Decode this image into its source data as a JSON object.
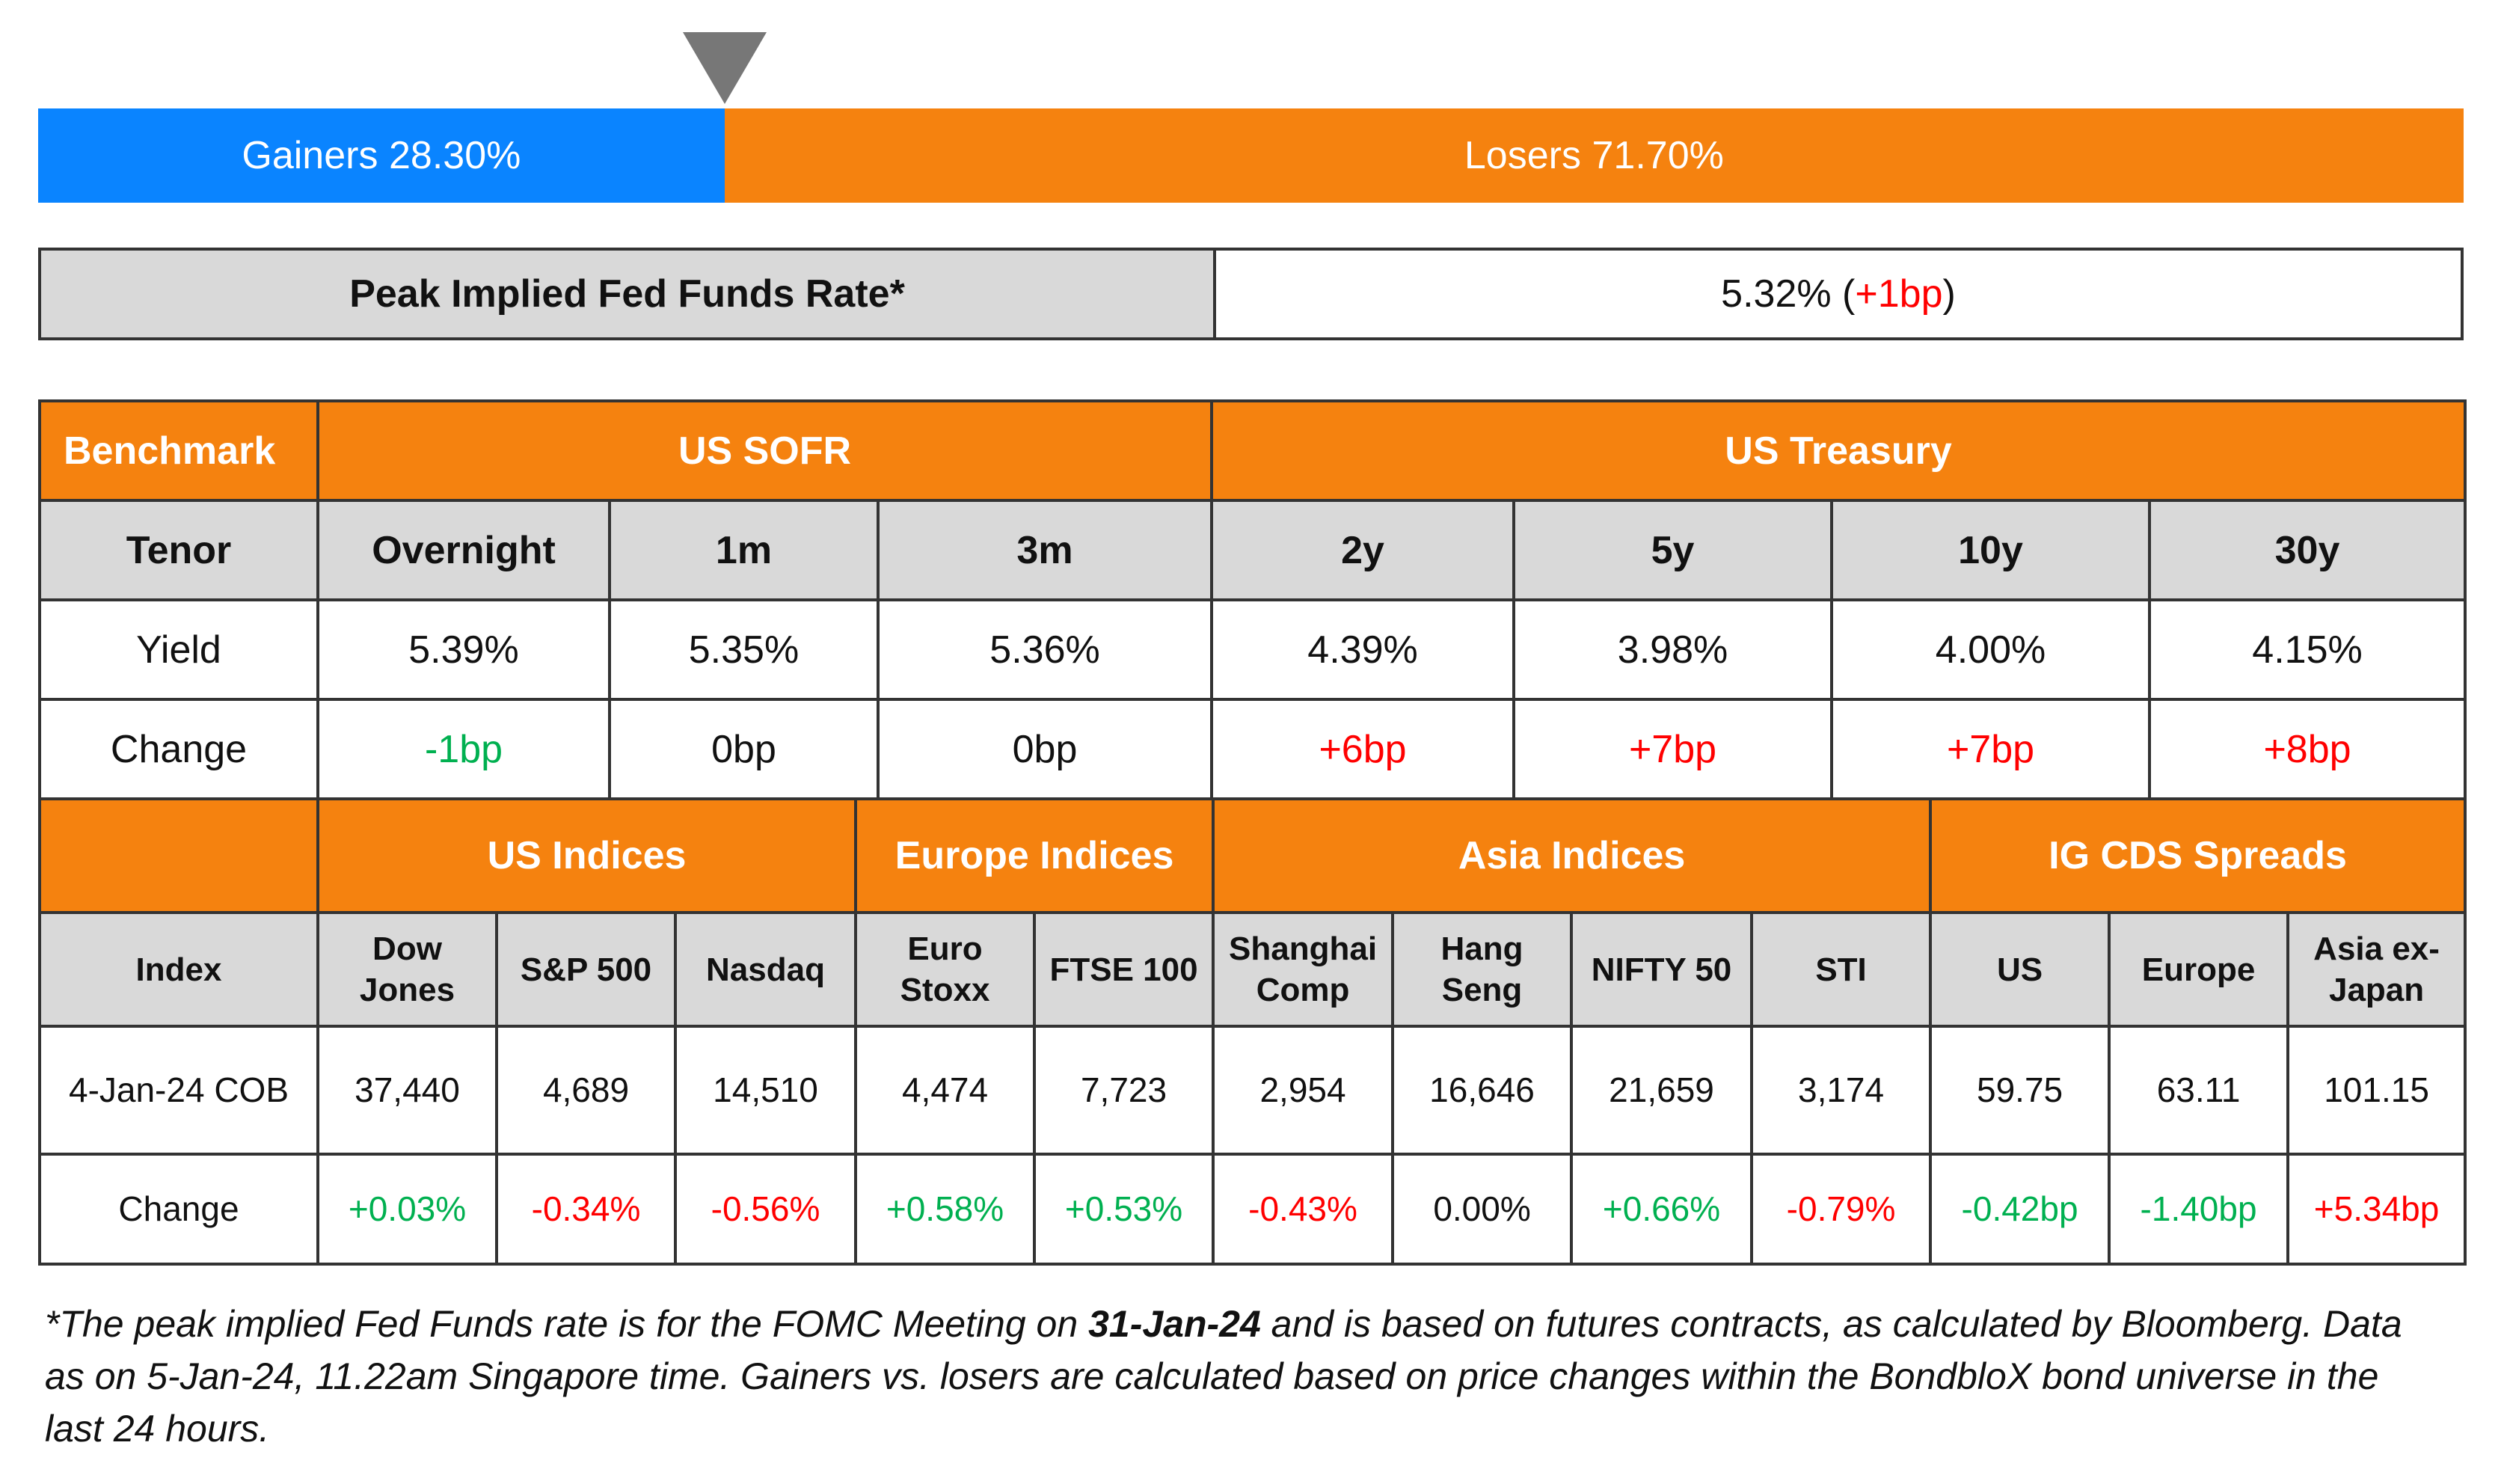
{
  "market_breadth": {
    "gainers": {
      "label": "Gainers",
      "value": "28.30%",
      "color": "#0a84ff"
    },
    "losers": {
      "label": "Losers",
      "value": "71.70%",
      "color": "#f5820f"
    }
  },
  "fed_funds": {
    "label": "Peak Implied Fed Funds Rate*",
    "value_parts": [
      {
        "text": "5.32% ("
      },
      {
        "text": "+1bp",
        "color": "#ff0000"
      },
      {
        "text": ")"
      }
    ]
  },
  "rates_table": {
    "header": [
      "Benchmark",
      "US SOFR",
      "US Treasury"
    ],
    "rows": [
      [
        "Tenor",
        "Overnight",
        "1m",
        "3m",
        "2y",
        "5y",
        "10y",
        "30y"
      ],
      [
        "Yield",
        "5.39%",
        "5.35%",
        "5.36%",
        "4.39%",
        "3.98%",
        "4.00%",
        "4.15%"
      ],
      [
        "Change",
        {
          "text": "-1bp",
          "color": "#00b050"
        },
        {
          "text": "0bp"
        },
        {
          "text": "0bp"
        },
        {
          "text": "+6bp",
          "color": "#ff0000"
        },
        {
          "text": "+7bp",
          "color": "#ff0000"
        },
        {
          "text": "+7bp",
          "color": "#ff0000"
        },
        {
          "text": "+8bp",
          "color": "#ff0000"
        }
      ]
    ]
  },
  "indices_table": {
    "header": [
      "US Indices",
      "Europe Indices",
      "Asia Indices",
      "IG CDS Spreads"
    ],
    "rows": [
      [
        "Index",
        "Dow\nJones",
        "S&P 500",
        "Nasdaq",
        "Euro\nStoxx",
        "FTSE 100",
        "Shanghai\nComp",
        "Hang\nSeng",
        "NIFTY 50",
        "STI",
        "US",
        "Europe",
        "Asia ex-\nJapan"
      ],
      [
        "4-Jan-24 COB",
        "37,440",
        "4,689",
        "14,510",
        "4,474",
        "7,723",
        "2,954",
        "16,646",
        "21,659",
        "3,174",
        "59.75",
        "63.11",
        "101.15"
      ],
      [
        "Change",
        {
          "text": "+0.03%",
          "color": "#00b050"
        },
        {
          "text": "-0.34%",
          "color": "#ff0000"
        },
        {
          "text": "-0.56%",
          "color": "#ff0000"
        },
        {
          "text": "+0.58%",
          "color": "#00b050"
        },
        {
          "text": "+0.53%",
          "color": "#00b050"
        },
        {
          "text": "-0.43%",
          "color": "#ff0000"
        },
        {
          "text": "0.00%"
        },
        {
          "text": "+0.66%",
          "color": "#00b050"
        },
        {
          "text": "-0.79%",
          "color": "#ff0000"
        },
        {
          "text": "-0.42bp",
          "color": "#00b050"
        },
        {
          "text": "-1.40bp",
          "color": "#00b050"
        },
        {
          "text": "+5.34bp",
          "color": "#ff0000"
        }
      ]
    ]
  },
  "footnote": [
    {
      "text": "*The peak implied Fed Funds rate is for the FOMC Meeting on "
    },
    {
      "text": "31-Jan-24",
      "bold": true
    },
    {
      "text": " and is based on futures contracts, as calculated by Bloomberg. Data as on 5-Jan-24, 11.22am Singapore time. Gainers vs. losers are calculated based on price changes within the BondbloX bond universe in the last 24 hours."
    }
  ]
}
